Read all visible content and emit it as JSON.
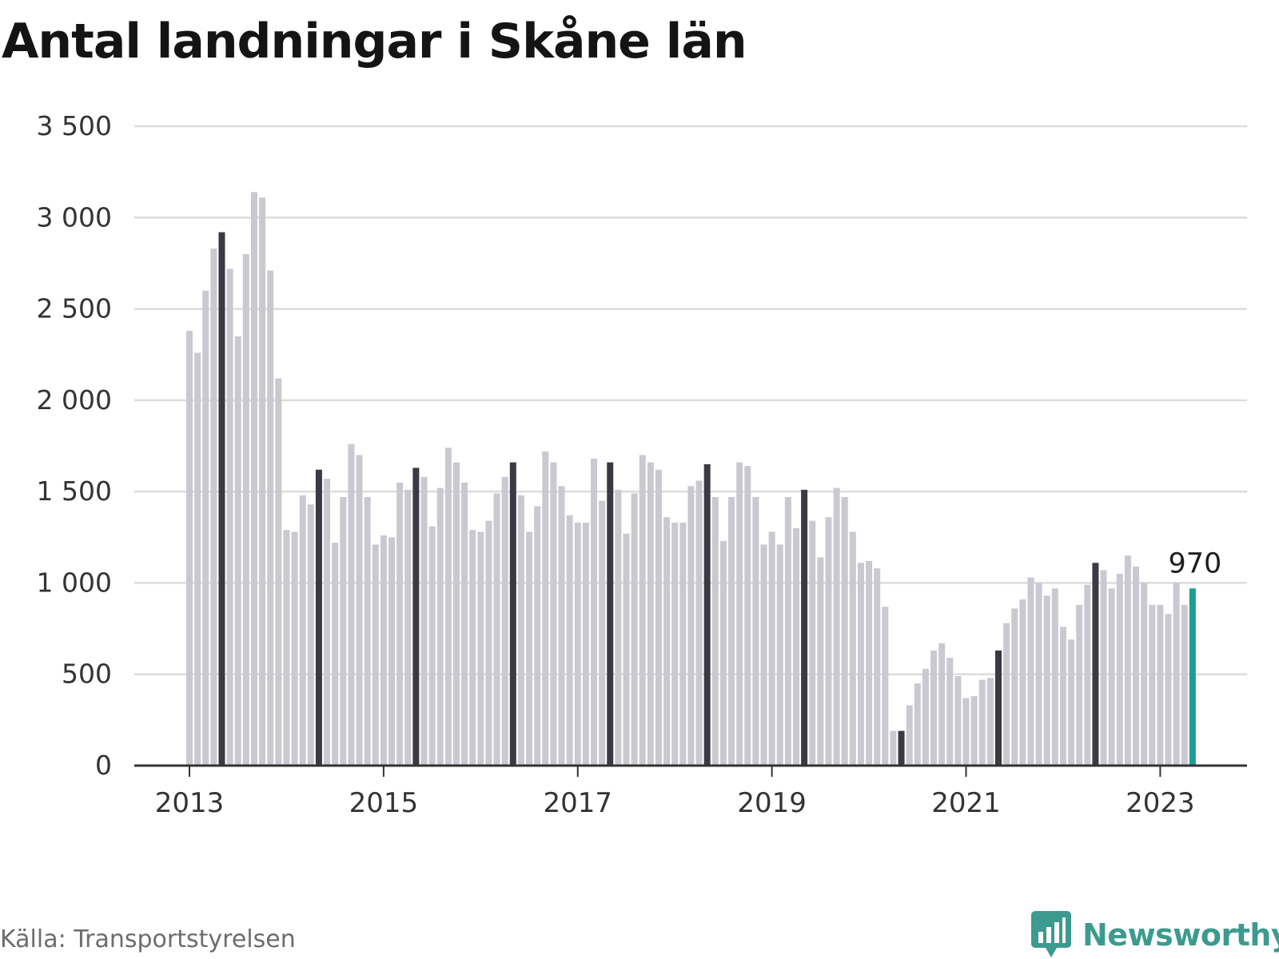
{
  "title": "Antal landningar i Skåne län",
  "source": "Källa: Transportstyrelsen",
  "brand": {
    "name": "Newsworthy",
    "icon": "bar-chart-icon",
    "color": "#3c9a8e"
  },
  "colors": {
    "bar": "#c9c9d1",
    "highlight": "#3a3a45",
    "latest": "#1a9e96",
    "grid": "#dcdcdc",
    "axis": "#333333",
    "text": "#333333"
  },
  "chart_data": {
    "type": "bar",
    "title": "Antal landningar i Skåne län",
    "xlabel": "",
    "ylabel": "",
    "ylim": [
      0,
      3500
    ],
    "yticks": [
      0,
      500,
      1000,
      1500,
      2000,
      2500,
      3000,
      3500
    ],
    "ytick_labels": [
      "0",
      "500",
      "1 000",
      "1 500",
      "2 000",
      "2 500",
      "3 000",
      "3 500"
    ],
    "xticks": [
      "2013",
      "2015",
      "2017",
      "2019",
      "2021",
      "2023"
    ],
    "start": "2013-01",
    "frequency": "monthly",
    "grid": true,
    "values": [
      2380,
      2260,
      2600,
      2830,
      2920,
      2720,
      2350,
      2800,
      3140,
      3110,
      2710,
      2120,
      1290,
      1280,
      1480,
      1430,
      1620,
      1570,
      1220,
      1470,
      1760,
      1700,
      1470,
      1210,
      1260,
      1250,
      1550,
      1510,
      1630,
      1580,
      1310,
      1520,
      1740,
      1660,
      1550,
      1290,
      1280,
      1340,
      1490,
      1580,
      1660,
      1480,
      1280,
      1420,
      1720,
      1660,
      1530,
      1370,
      1330,
      1330,
      1680,
      1450,
      1660,
      1510,
      1270,
      1490,
      1700,
      1660,
      1620,
      1360,
      1330,
      1330,
      1530,
      1560,
      1650,
      1470,
      1230,
      1470,
      1660,
      1640,
      1470,
      1210,
      1280,
      1210,
      1470,
      1300,
      1510,
      1340,
      1140,
      1360,
      1520,
      1470,
      1280,
      1110,
      1120,
      1080,
      870,
      190,
      190,
      330,
      450,
      530,
      630,
      670,
      590,
      490,
      370,
      380,
      470,
      480,
      630,
      780,
      860,
      910,
      1030,
      1000,
      930,
      970,
      760,
      690,
      880,
      990,
      1110,
      1070,
      970,
      1050,
      1150,
      1090,
      1000,
      880,
      880,
      830,
      1000,
      880,
      970
    ],
    "highlighted_indices": [
      4,
      16,
      28,
      40,
      52,
      64,
      76,
      88,
      100,
      112
    ],
    "latest_label": "970"
  }
}
